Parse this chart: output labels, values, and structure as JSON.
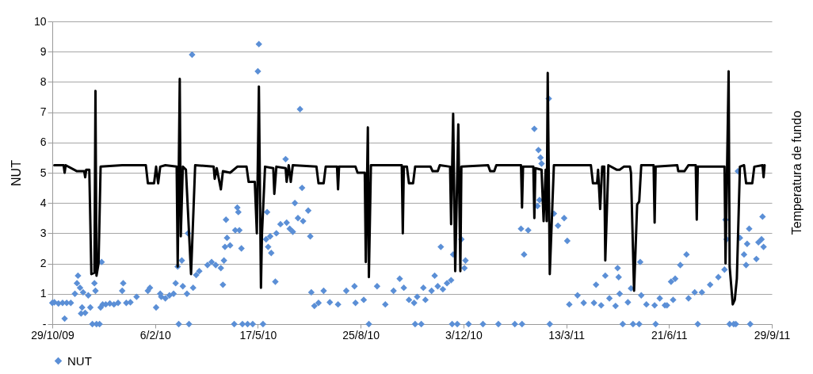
{
  "chart_data": {
    "type": "scatter",
    "ylabel": "NUT",
    "y2label": "Temperatura de fundo",
    "xlim": [
      "2009-10-29",
      "2011-09-29"
    ],
    "xticks": [
      {
        "value": "2009-10-29",
        "label": "29/10/09"
      },
      {
        "value": "2010-02-06",
        "label": "6/2/10"
      },
      {
        "value": "2010-05-17",
        "label": "17/5/10"
      },
      {
        "value": "2010-08-25",
        "label": "25/8/10"
      },
      {
        "value": "2010-12-03",
        "label": "3/12/10"
      },
      {
        "value": "2011-03-13",
        "label": "13/3/11"
      },
      {
        "value": "2011-06-21",
        "label": "21/6/11"
      },
      {
        "value": "2011-09-29",
        "label": "29/9/11"
      }
    ],
    "ylim": [
      0,
      10
    ],
    "yticks": [
      {
        "value": 0,
        "label": "-"
      },
      1,
      2,
      3,
      4,
      5,
      6,
      7,
      8,
      9,
      10
    ],
    "grid": "y",
    "legend": "bottom",
    "series": [
      {
        "name": "NUT",
        "color": "#5b8fd6",
        "marker": "diamond",
        "x": [
          "2009-10-29",
          "2009-10-31",
          "2009-11-04",
          "2009-11-08",
          "2009-11-10",
          "2009-11-12",
          "2009-11-16",
          "2009-11-20",
          "2009-11-22",
          "2009-11-23",
          "2009-11-25",
          "2009-11-26",
          "2009-11-27",
          "2009-11-28",
          "2009-11-30",
          "2009-12-03",
          "2009-12-05",
          "2009-12-07",
          "2009-12-09",
          "2009-12-10",
          "2009-12-11",
          "2009-12-14",
          "2009-12-15",
          "2009-12-16",
          "2009-12-17",
          "2009-12-20",
          "2009-12-24",
          "2009-12-28",
          "2010-01-01",
          "2010-01-05",
          "2010-01-06",
          "2010-01-09",
          "2010-01-13",
          "2010-01-19",
          "2010-01-30",
          "2010-02-01",
          "2010-02-07",
          "2010-02-11",
          "2010-02-12",
          "2010-02-16",
          "2010-02-20",
          "2010-02-24",
          "2010-02-26",
          "2010-02-28",
          "2010-03-01",
          "2010-03-04",
          "2010-03-05",
          "2010-03-09",
          "2010-03-10",
          "2010-03-11",
          "2010-03-14",
          "2010-03-15",
          "2010-03-18",
          "2010-03-21",
          "2010-03-29",
          "2010-04-02",
          "2010-04-06",
          "2010-04-11",
          "2010-04-13",
          "2010-04-14",
          "2010-04-15",
          "2010-04-16",
          "2010-04-17",
          "2010-04-20",
          "2010-04-24",
          "2010-04-25",
          "2010-04-27",
          "2010-04-28",
          "2010-04-29",
          "2010-05-01",
          "2010-05-02",
          "2010-05-07",
          "2010-05-12",
          "2010-05-17",
          "2010-05-18",
          "2010-05-22",
          "2010-05-25",
          "2010-05-26",
          "2010-05-27",
          "2010-05-29",
          "2010-05-30",
          "2010-06-03",
          "2010-06-04",
          "2010-06-08",
          "2010-06-13",
          "2010-06-14",
          "2010-06-17",
          "2010-06-20",
          "2010-06-22",
          "2010-06-25",
          "2010-06-27",
          "2010-06-29",
          "2010-06-30",
          "2010-07-05",
          "2010-07-07",
          "2010-07-08",
          "2010-07-11",
          "2010-07-15",
          "2010-07-20",
          "2010-07-26",
          "2010-08-03",
          "2010-08-11",
          "2010-08-19",
          "2010-08-20",
          "2010-08-28",
          "2010-09-02",
          "2010-09-10",
          "2010-09-18",
          "2010-09-26",
          "2010-10-02",
          "2010-10-06",
          "2010-10-11",
          "2010-10-16",
          "2010-10-17",
          "2010-10-19",
          "2010-10-23",
          "2010-10-25",
          "2010-10-27",
          "2010-11-02",
          "2010-11-05",
          "2010-11-08",
          "2010-11-11",
          "2010-11-13",
          "2010-11-17",
          "2010-11-21",
          "2010-11-22",
          "2010-11-23",
          "2010-11-27",
          "2010-12-01",
          "2010-12-04",
          "2010-12-05",
          "2010-12-08",
          "2010-12-22",
          "2011-01-06",
          "2011-01-22",
          "2011-01-28",
          "2011-01-29",
          "2011-01-31",
          "2011-02-04",
          "2011-02-10",
          "2011-02-14",
          "2011-02-16",
          "2011-02-17",
          "2011-02-15",
          "2011-02-13",
          "2011-02-24",
          "2011-02-25",
          "2011-03-01",
          "2011-03-05",
          "2011-03-11",
          "2011-03-14",
          "2011-03-16",
          "2011-03-24",
          "2011-03-30",
          "2011-04-09",
          "2011-04-11",
          "2011-04-16",
          "2011-04-20",
          "2011-04-24",
          "2011-04-30",
          "2011-05-02",
          "2011-05-03",
          "2011-05-04",
          "2011-05-07",
          "2011-05-12",
          "2011-05-15",
          "2011-05-17",
          "2011-05-23",
          "2011-05-24",
          "2011-05-25",
          "2011-05-30",
          "2011-06-07",
          "2011-06-08",
          "2011-06-12",
          "2011-06-17",
          "2011-06-19",
          "2011-06-23",
          "2011-06-25",
          "2011-06-27",
          "2011-07-02",
          "2011-07-08",
          "2011-07-10",
          "2011-07-16",
          "2011-07-19",
          "2011-07-23",
          "2011-07-31",
          "2011-08-08",
          "2011-08-14",
          "2011-08-15",
          "2011-08-16",
          "2011-08-19",
          "2011-08-23",
          "2011-08-25",
          "2011-08-27",
          "2011-08-29",
          "2011-09-02",
          "2011-09-04",
          "2011-09-05",
          "2011-09-07",
          "2011-09-08",
          "2011-09-14",
          "2011-09-16",
          "2011-09-19",
          "2011-09-20",
          "2011-09-21"
        ],
        "values": [
          0.7,
          0.72,
          0.68,
          0.7,
          0.18,
          0.7,
          0.7,
          1.0,
          1.35,
          1.6,
          1.2,
          0.35,
          0.55,
          1.05,
          0.37,
          0.95,
          0.55,
          0,
          1.35,
          1.1,
          0,
          0,
          0.55,
          2.05,
          0.65,
          0.65,
          0.68,
          0.65,
          0.7,
          1.1,
          1.35,
          0.7,
          0.72,
          0.9,
          1.1,
          1.2,
          0.55,
          1.0,
          0.9,
          0.85,
          0.95,
          1.0,
          1.35,
          1.9,
          0,
          2.1,
          1.25,
          1.0,
          3.0,
          0,
          8.9,
          1.2,
          1.62,
          1.75,
          1.95,
          2.05,
          1.95,
          1.85,
          1.3,
          2.1,
          2.55,
          3.45,
          2.85,
          2.6,
          0,
          3.1,
          3.85,
          3.7,
          3.1,
          2.5,
          0,
          0,
          0,
          8.35,
          9.25,
          0,
          2.8,
          3.7,
          2.55,
          2.9,
          2.35,
          1.4,
          3.0,
          3.3,
          5.45,
          3.35,
          3.15,
          3.05,
          4.0,
          3.5,
          7.1,
          4.5,
          3.4,
          3.75,
          2.9,
          1.05,
          0.6,
          0.7,
          1.1,
          0.72,
          0.65,
          1.1,
          1.25,
          0.7,
          0.8,
          0,
          1.25,
          0.65,
          1.1,
          1.5,
          1.2,
          0.8,
          0.7,
          0,
          0.9,
          0,
          1.2,
          0.8,
          1.1,
          1.6,
          1.25,
          2.55,
          1.15,
          1.35,
          1.45,
          0,
          2.3,
          0,
          2.8,
          1.85,
          2.1,
          0,
          0,
          0,
          0,
          3.15,
          0,
          2.3,
          3.1,
          6.45,
          5.75,
          5.5,
          5.3,
          4.1,
          3.9,
          7.45,
          0,
          3.65,
          3.25,
          3.5,
          2.75,
          0.65,
          0.95,
          0.7,
          0.7,
          1.3,
          0.62,
          1.6,
          0.85,
          0.6,
          1.85,
          1.55,
          1.0,
          0,
          0.72,
          1.18,
          0,
          0,
          2.05,
          0.95,
          0.65,
          0.62,
          0,
          0.85,
          0.62,
          0.62,
          1.4,
          0.8,
          1.5,
          1.95,
          2.3,
          0.85,
          1.05,
          0,
          1.05,
          1.3,
          1.55,
          1.8,
          3.45,
          2.8,
          0,
          0,
          0,
          5.05,
          2.85,
          2.3,
          1.95,
          2.65,
          3.15,
          0,
          2.15,
          2.7,
          2.8,
          3.55,
          2.55
        ]
      },
      {
        "color": "#000000",
        "type": "line",
        "marker": "none",
        "x": [
          "2009-10-31",
          "2009-11-09",
          "2009-11-10",
          "2009-11-11",
          "2009-11-22",
          "2009-11-29",
          "2009-11-30",
          "2009-12-01",
          "2009-12-04",
          "2009-12-06",
          "2009-12-09",
          "2009-12-10",
          "2009-12-11",
          "2009-12-13",
          "2009-12-15",
          "2010-01-05",
          "2010-01-28",
          "2010-01-30",
          "2010-02-05",
          "2010-02-07",
          "2010-02-09",
          "2010-02-11",
          "2010-02-16",
          "2010-02-27",
          "2010-02-28",
          "2010-03-02",
          "2010-03-03",
          "2010-03-05",
          "2010-03-08",
          "2010-03-13",
          "2010-03-17",
          "2010-04-04",
          "2010-04-05",
          "2010-04-07",
          "2010-04-11",
          "2010-04-13",
          "2010-04-20",
          "2010-04-27",
          "2010-05-06",
          "2010-05-08",
          "2010-05-14",
          "2010-05-16",
          "2010-05-18",
          "2010-05-20",
          "2010-05-21",
          "2010-05-24",
          "2010-06-01",
          "2010-06-02",
          "2010-06-04",
          "2010-06-13",
          "2010-06-14",
          "2010-06-16",
          "2010-06-18",
          "2010-06-20",
          "2010-07-13",
          "2010-07-15",
          "2010-07-20",
          "2010-07-22",
          "2010-08-02",
          "2010-08-03",
          "2010-08-04",
          "2010-08-20",
          "2010-08-22",
          "2010-08-29",
          "2010-08-30",
          "2010-09-01",
          "2010-09-02",
          "2010-09-04",
          "2010-10-04",
          "2010-10-05",
          "2010-10-06",
          "2010-10-09",
          "2010-10-11",
          "2010-10-15",
          "2010-10-17",
          "2010-11-01",
          "2010-11-03",
          "2010-11-08",
          "2010-11-10",
          "2010-11-20",
          "2010-11-21",
          "2010-11-23",
          "2010-11-25",
          "2010-11-28",
          "2010-11-30",
          "2010-12-01",
          "2010-12-27",
          "2010-12-29",
          "2011-01-02",
          "2011-01-04",
          "2011-01-28",
          "2011-01-29",
          "2011-01-30",
          "2011-02-09",
          "2011-02-10",
          "2011-02-11",
          "2011-02-17",
          "2011-02-19",
          "2011-02-21",
          "2011-02-22",
          "2011-02-23",
          "2011-02-25",
          "2011-03-01",
          "2011-04-06",
          "2011-04-08",
          "2011-04-12",
          "2011-04-13",
          "2011-04-15",
          "2011-04-17",
          "2011-04-19",
          "2011-04-20",
          "2011-04-23",
          "2011-05-01",
          "2011-05-04",
          "2011-05-08",
          "2011-05-14",
          "2011-05-15",
          "2011-05-18",
          "2011-05-21",
          "2011-05-23",
          "2011-05-25",
          "2011-06-06",
          "2011-06-07",
          "2011-06-08",
          "2011-06-29",
          "2011-06-30",
          "2011-07-06",
          "2011-07-10",
          "2011-07-17",
          "2011-07-18",
          "2011-07-19",
          "2011-08-14",
          "2011-08-15",
          "2011-08-18",
          "2011-08-19",
          "2011-08-22",
          "2011-08-24",
          "2011-08-26",
          "2011-08-29",
          "2011-09-02",
          "2011-09-04",
          "2011-09-10",
          "2011-09-12",
          "2011-09-20",
          "2011-09-21",
          "2011-09-22"
        ],
        "values": [
          5.25,
          5.25,
          5.0,
          5.25,
          5.05,
          5.05,
          4.85,
          5.1,
          5.1,
          1.65,
          1.7,
          7.7,
          1.6,
          2.0,
          5.2,
          5.25,
          5.25,
          4.65,
          4.65,
          5.2,
          4.65,
          5.2,
          5.25,
          5.2,
          1.9,
          8.1,
          2.9,
          5.2,
          5.1,
          1.65,
          5.25,
          5.2,
          4.8,
          5.15,
          4.45,
          5.05,
          5.0,
          5.2,
          5.2,
          4.7,
          4.7,
          3.0,
          7.85,
          1.2,
          3.0,
          5.2,
          5.15,
          4.3,
          5.2,
          5.15,
          4.7,
          5.25,
          4.7,
          5.25,
          5.2,
          4.65,
          4.65,
          5.2,
          5.2,
          4.45,
          5.2,
          5.2,
          5.0,
          5.0,
          2.05,
          6.5,
          1.55,
          5.25,
          5.25,
          3.0,
          5.2,
          5.2,
          4.65,
          4.65,
          5.2,
          5.2,
          5.05,
          5.05,
          5.25,
          5.2,
          3.3,
          6.95,
          1.75,
          6.6,
          1.75,
          5.2,
          5.25,
          5.05,
          5.05,
          5.25,
          5.25,
          3.85,
          5.2,
          5.2,
          3.5,
          5.15,
          5.1,
          3.4,
          5.1,
          3.4,
          8.3,
          1.65,
          5.25,
          5.25,
          4.65,
          4.65,
          5.1,
          3.8,
          5.2,
          5.2,
          2.1,
          5.25,
          5.1,
          5.1,
          5.2,
          5.2,
          5.0,
          1.1,
          3.95,
          4.05,
          5.25,
          5.25,
          3.35,
          5.2,
          5.25,
          5.05,
          5.05,
          5.25,
          5.25,
          3.45,
          5.2,
          5.2,
          2.0,
          8.35,
          1.9,
          0.65,
          0.8,
          1.5,
          5.2,
          5.25,
          4.65,
          4.65,
          5.2,
          5.25,
          4.85,
          5.25
        ]
      }
    ]
  }
}
